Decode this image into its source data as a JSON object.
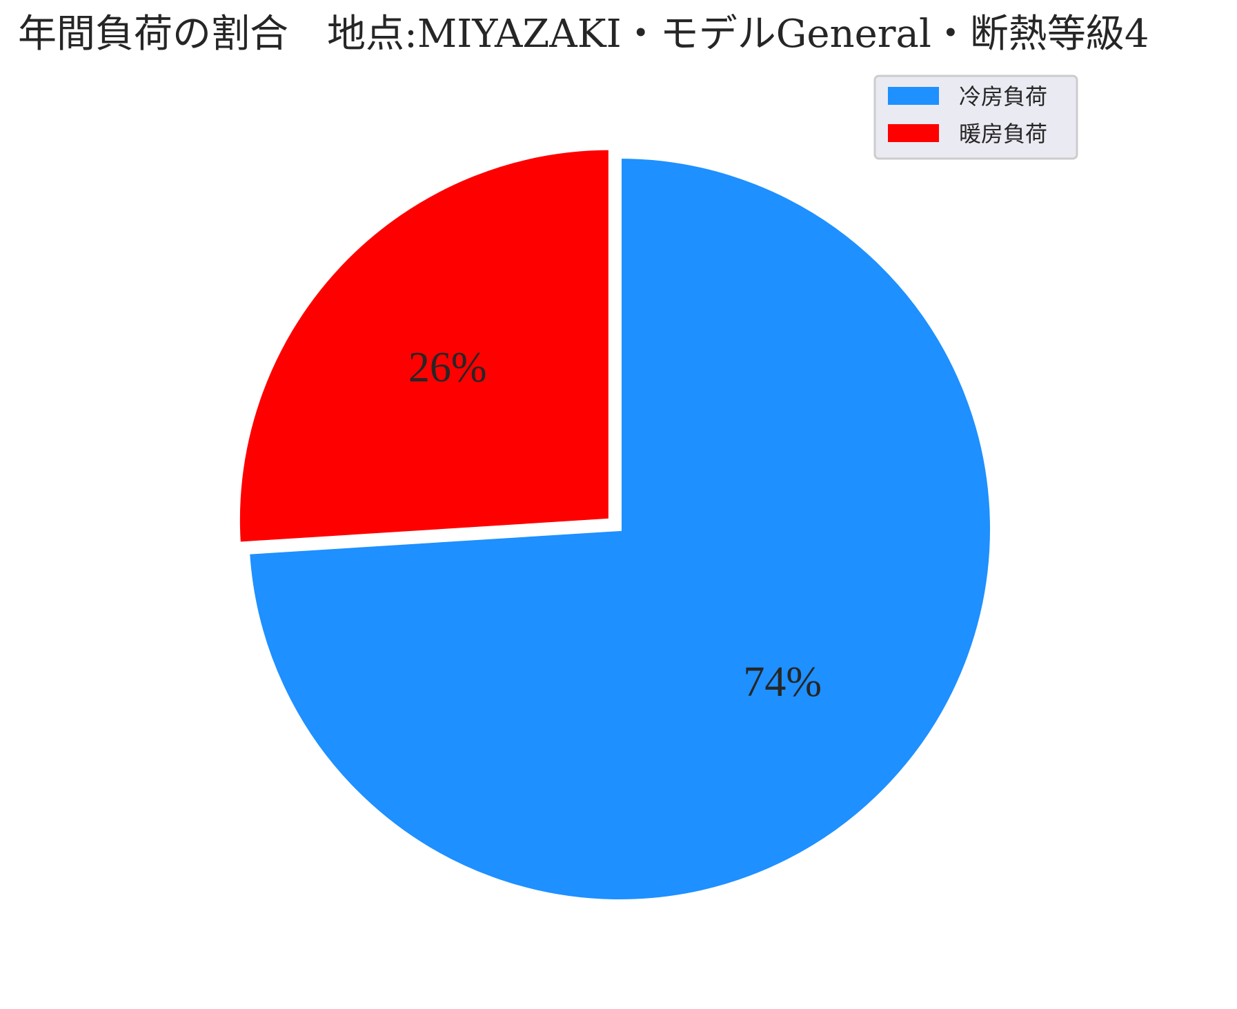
{
  "chart_data": {
    "type": "pie",
    "title": "年間負荷の割合　地点:MIYAZAKI・モデルGeneral・断熱等級4",
    "slices": [
      {
        "name": "冷房負荷",
        "value": 74,
        "label": "74%",
        "color": "#1e90ff",
        "exploded": false
      },
      {
        "name": "暖房負荷",
        "value": 26,
        "label": "26%",
        "color": "#ff0000",
        "exploded": true
      }
    ],
    "start_angle": "12 o'clock",
    "direction": "clockwise",
    "legend": {
      "position": "top-right"
    }
  }
}
